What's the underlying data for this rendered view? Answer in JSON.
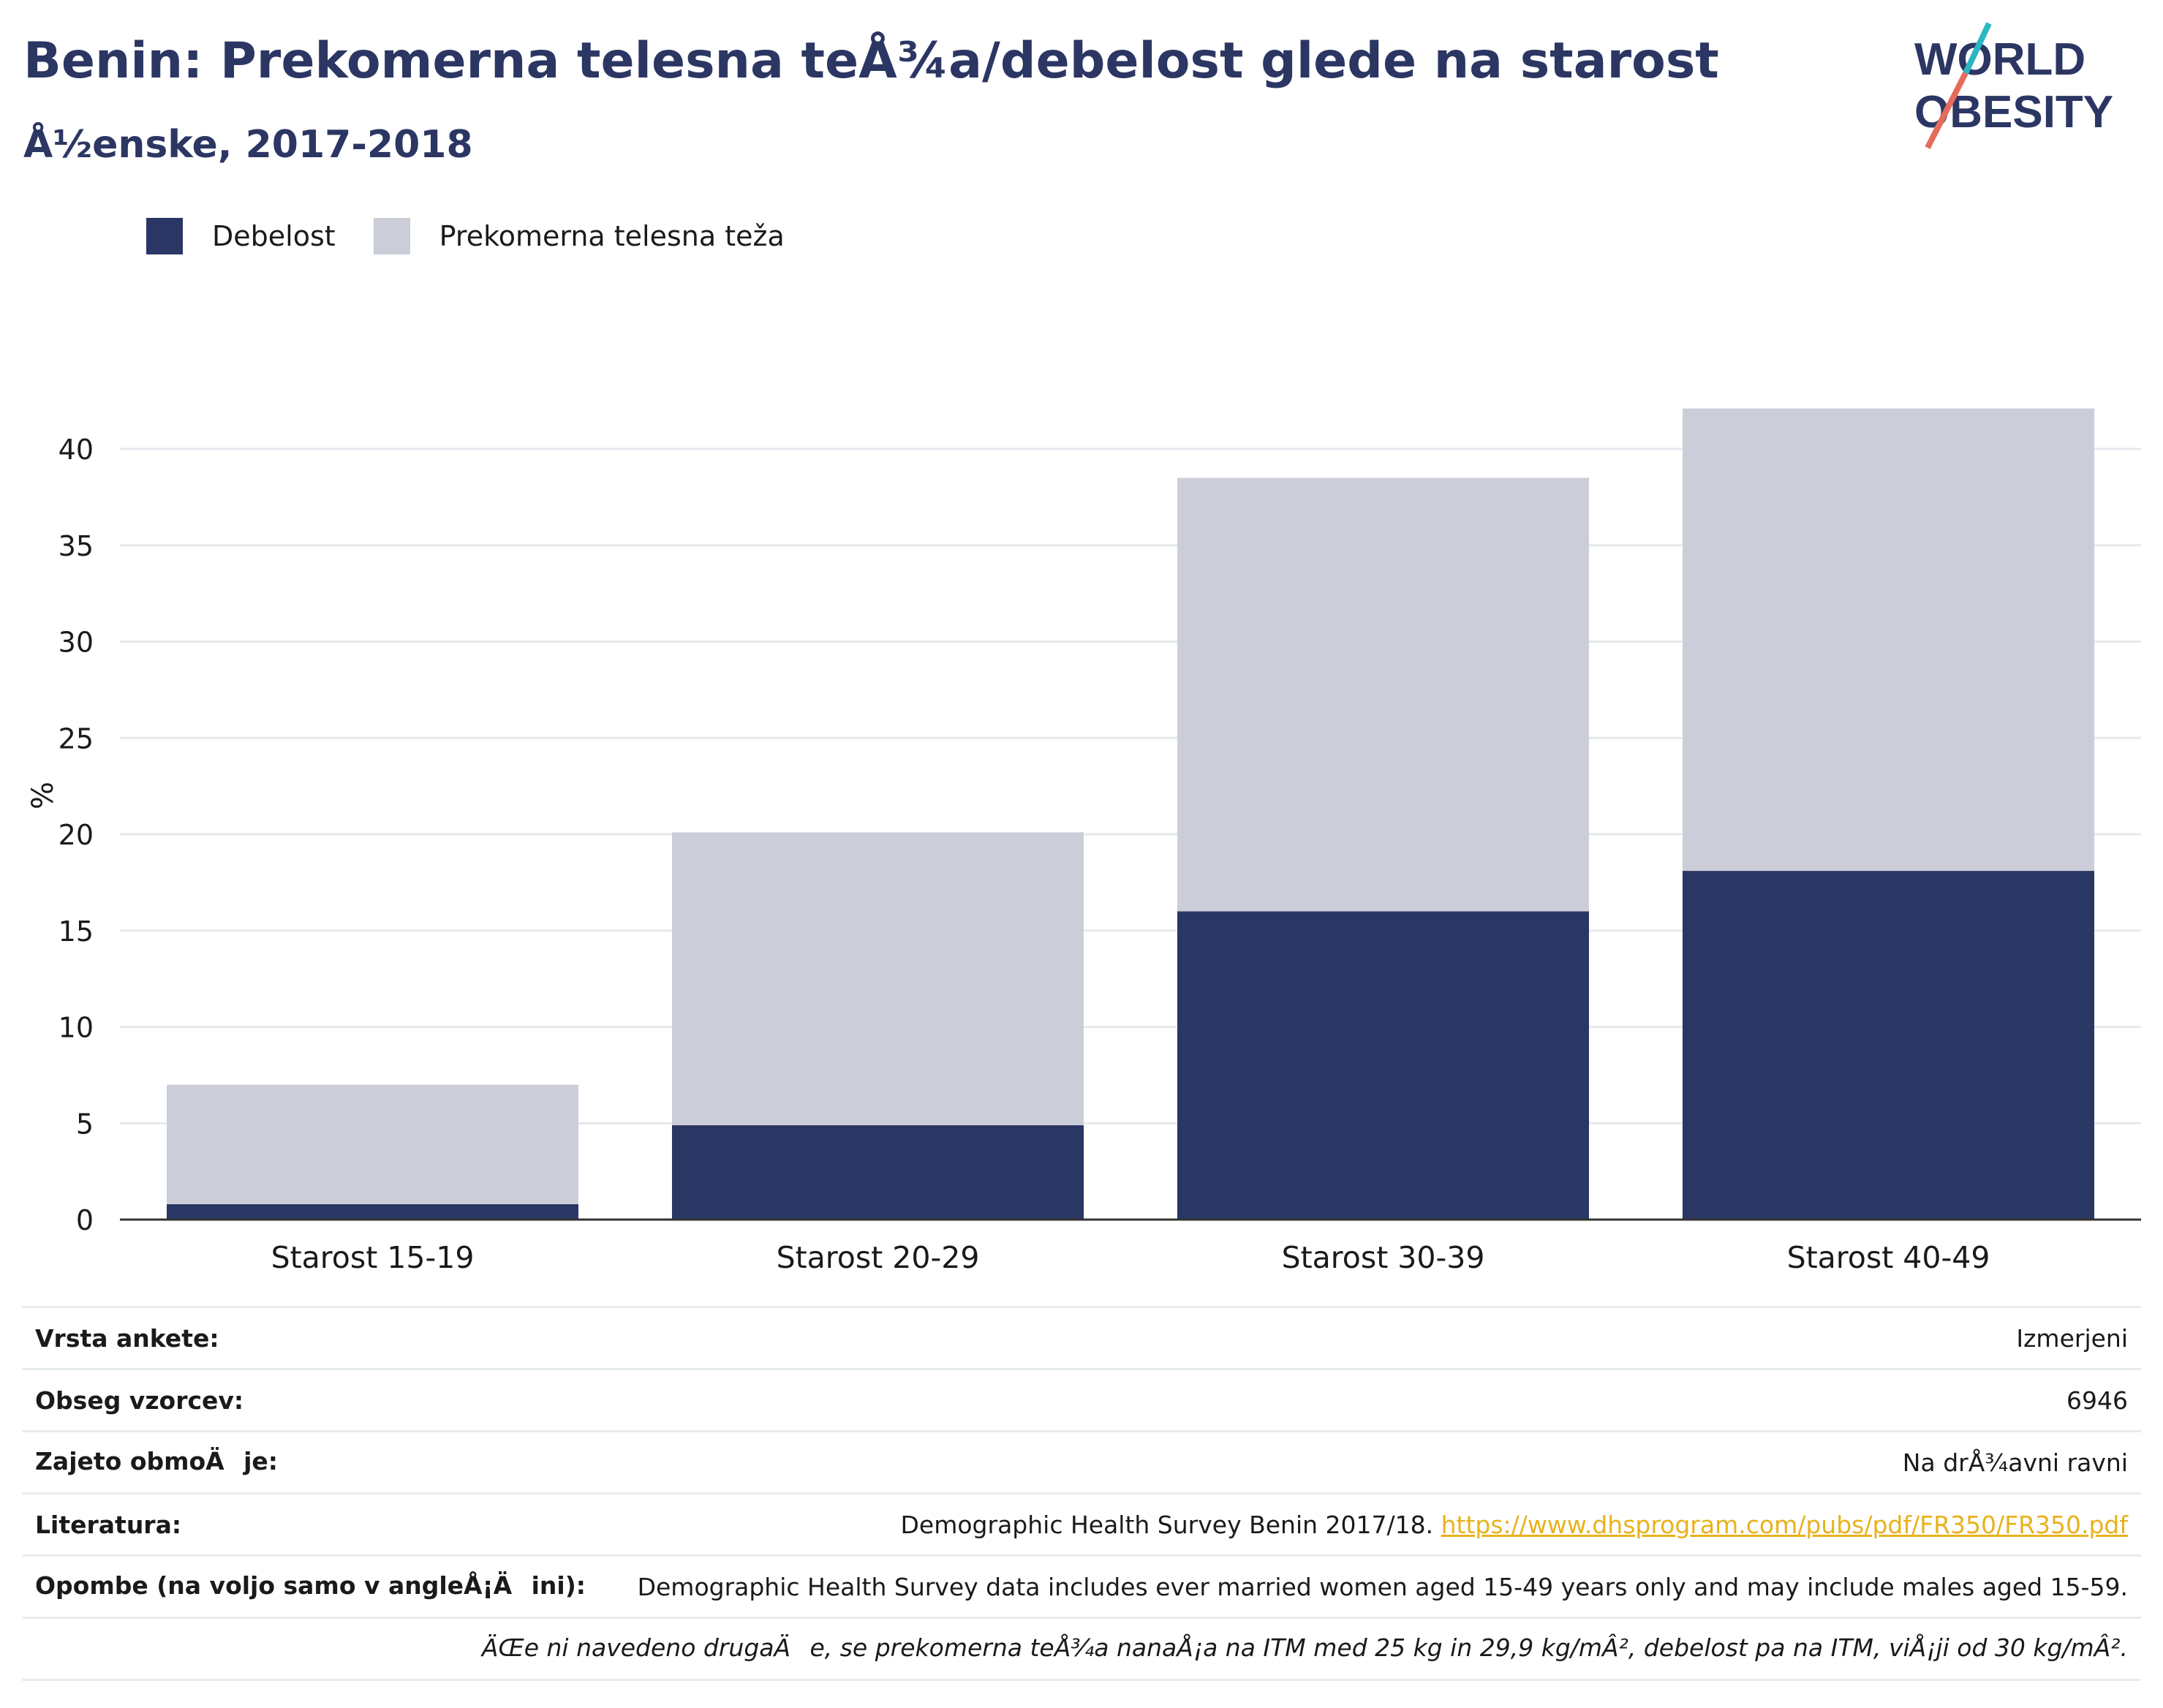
{
  "title": "Benin: Prekomerna telesna teÅ¾a/debelost glede na starost",
  "subtitle": "Å½enske, 2017-2018",
  "logo": {
    "line1": "WORLD",
    "line2": "OBESITY"
  },
  "colors": {
    "obesity": "#2a3663",
    "overweight": "#cbcdd8",
    "title": "#2b3663",
    "link": "#e8b21c",
    "logo_teal": "#2ab7c0",
    "logo_coral": "#e56b5d"
  },
  "legend": [
    {
      "label": "Debelost",
      "color": "#2a3663"
    },
    {
      "label": "Prekomerna telesna teža",
      "color": "#cbcdd8"
    }
  ],
  "chart_data": {
    "type": "bar",
    "stacked": true,
    "categories": [
      "Starost 15-19",
      "Starost 20-29",
      "Starost 30-39",
      "Starost 40-49"
    ],
    "series": [
      {
        "name": "Debelost",
        "values": [
          0.8,
          4.9,
          16.0,
          18.1
        ]
      },
      {
        "name": "Prekomerna telesna teža",
        "values": [
          6.2,
          15.2,
          22.5,
          24.0
        ]
      }
    ],
    "ylabel": "%",
    "ylim": [
      0,
      42
    ],
    "yticks": [
      0,
      5,
      10,
      15,
      20,
      25,
      30,
      35,
      40
    ],
    "grid": true,
    "legend_position": "top-left"
  },
  "info": {
    "survey_type": {
      "label": "Vrsta ankete:",
      "value": "Izmerjeni"
    },
    "sample_size": {
      "label": "Obseg vzorcev:",
      "value": "6946"
    },
    "coverage": {
      "label": "Zajeto obmoÄje:",
      "value": "Na drÅ¾avni ravni"
    },
    "reference": {
      "label": "Literatura:",
      "value": "Demographic Health Survey Benin 2017/18.",
      "link": "https://www.dhsprogram.com/pubs/pdf/FR350/FR350.pdf"
    },
    "notes": {
      "label": "Opombe (na voljo samo v angleÅ¡Äini):",
      "value": "Demographic Health Survey data includes ever married women aged 15-49 years only and may include males aged 15-59."
    },
    "definition": "ÄŒe ni navedeno drugaÄe, se prekomerna teÅ¾a nanaÅ¡a na ITM med 25 kg in 29,9 kg/mÂ², debelost pa na ITM, viÅ¡ji od 30 kg/mÂ²."
  }
}
